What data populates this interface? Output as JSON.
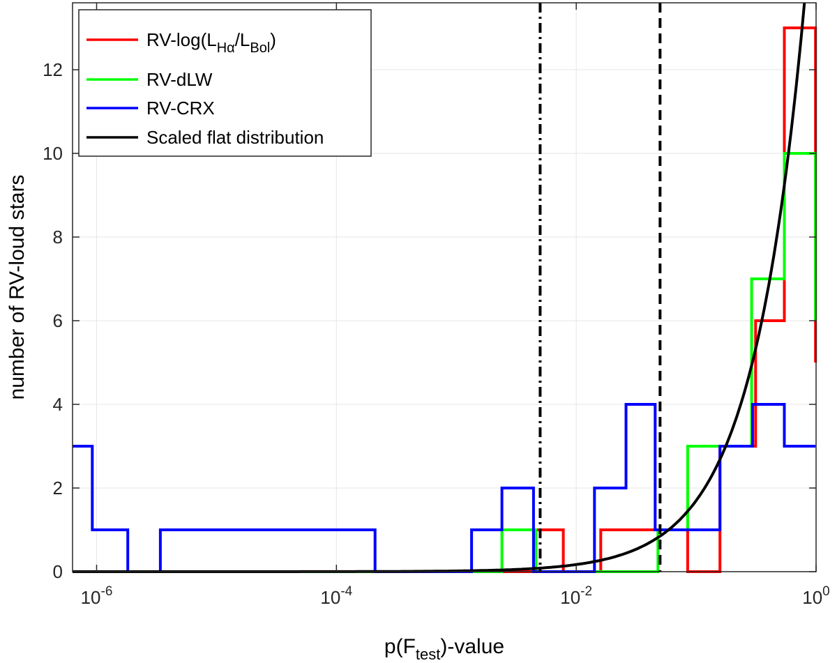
{
  "chart_data": {
    "type": "line",
    "xscale": "log",
    "xlim": [
      6.3e-07,
      1.0
    ],
    "ylim": [
      0,
      13.6
    ],
    "xticks": [
      {
        "value": 1e-06,
        "base": "10",
        "exp": "-6"
      },
      {
        "value": 0.0001,
        "base": "10",
        "exp": "-4"
      },
      {
        "value": 0.01,
        "base": "10",
        "exp": "-2"
      },
      {
        "value": 1,
        "base": "10",
        "exp": "0"
      }
    ],
    "yticks": [
      "0",
      "2",
      "4",
      "6",
      "8",
      "10",
      "12"
    ],
    "ylabel": "number of RV-loud stars",
    "xlabel": {
      "pre": "p(F",
      "sub": "test",
      "post": ")-value"
    },
    "legend": {
      "position": "top-left",
      "entries": [
        {
          "label": "RV-log(L",
          "sub1": "Hα",
          "mid": "/L",
          "sub2": "Bol",
          "post": ")",
          "color": "#ff0000"
        },
        {
          "label": "RV-dLW",
          "color": "#00ff00"
        },
        {
          "label": "RV-CRX",
          "color": "#0000ff"
        },
        {
          "label": "Scaled flat distribution",
          "color": "#000000"
        }
      ]
    },
    "series": [
      {
        "name": "RV-log(LHa/LBol)",
        "color": "#ff0000",
        "steps": [
          [
            6.3e-07,
            0
          ],
          [
            0.0016,
            0
          ],
          [
            0.0016,
            0
          ],
          [
            0.0046,
            0
          ],
          [
            0.0046,
            1
          ],
          [
            0.0078,
            1
          ],
          [
            0.0078,
            0
          ],
          [
            0.016,
            0
          ],
          [
            0.016,
            1
          ],
          [
            0.085,
            1
          ],
          [
            0.085,
            0
          ],
          [
            0.158,
            0
          ],
          [
            0.158,
            3
          ],
          [
            0.313,
            3
          ],
          [
            0.313,
            6
          ],
          [
            0.544,
            6
          ],
          [
            0.544,
            13
          ],
          [
            0.99,
            13
          ],
          [
            0.99,
            5
          ]
        ]
      },
      {
        "name": "RV-dLW",
        "color": "#00ff00",
        "steps": [
          [
            6.3e-07,
            0
          ],
          [
            0.0024,
            0
          ],
          [
            0.0024,
            1
          ],
          [
            0.0046,
            1
          ],
          [
            0.0046,
            0
          ],
          [
            0.048,
            0
          ],
          [
            0.048,
            1
          ],
          [
            0.085,
            1
          ],
          [
            0.085,
            3
          ],
          [
            0.158,
            3
          ],
          [
            0.158,
            3
          ],
          [
            0.29,
            3
          ],
          [
            0.29,
            7
          ],
          [
            0.544,
            7
          ],
          [
            0.544,
            10
          ],
          [
            0.99,
            10
          ],
          [
            0.99,
            6
          ]
        ]
      },
      {
        "name": "RV-CRX",
        "color": "#0000ff",
        "steps": [
          [
            6.3e-07,
            3
          ],
          [
            9.2e-07,
            3
          ],
          [
            9.2e-07,
            1
          ],
          [
            1.82e-06,
            1
          ],
          [
            1.82e-06,
            0
          ],
          [
            3.4e-06,
            0
          ],
          [
            3.4e-06,
            1
          ],
          [
            0.00021,
            1
          ],
          [
            0.00021,
            0
          ],
          [
            0.00134,
            0
          ],
          [
            0.00134,
            1
          ],
          [
            0.0024,
            1
          ],
          [
            0.0024,
            2
          ],
          [
            0.0044,
            2
          ],
          [
            0.0044,
            0
          ],
          [
            0.0142,
            0
          ],
          [
            0.0142,
            2
          ],
          [
            0.026,
            2
          ],
          [
            0.026,
            4
          ],
          [
            0.0455,
            4
          ],
          [
            0.0455,
            1
          ],
          [
            0.158,
            1
          ],
          [
            0.158,
            3
          ],
          [
            0.295,
            3
          ],
          [
            0.295,
            4
          ],
          [
            0.544,
            4
          ],
          [
            0.544,
            3
          ],
          [
            0.99,
            3
          ]
        ]
      }
    ],
    "flat_distribution": {
      "name": "Scaled flat distribution",
      "color": "#000000",
      "formula": "y = 17 * x"
    },
    "vlines": [
      {
        "x": 0.005,
        "style": "dashdot",
        "color": "#000000"
      },
      {
        "x": 0.05,
        "style": "dashed",
        "color": "#000000"
      }
    ]
  }
}
